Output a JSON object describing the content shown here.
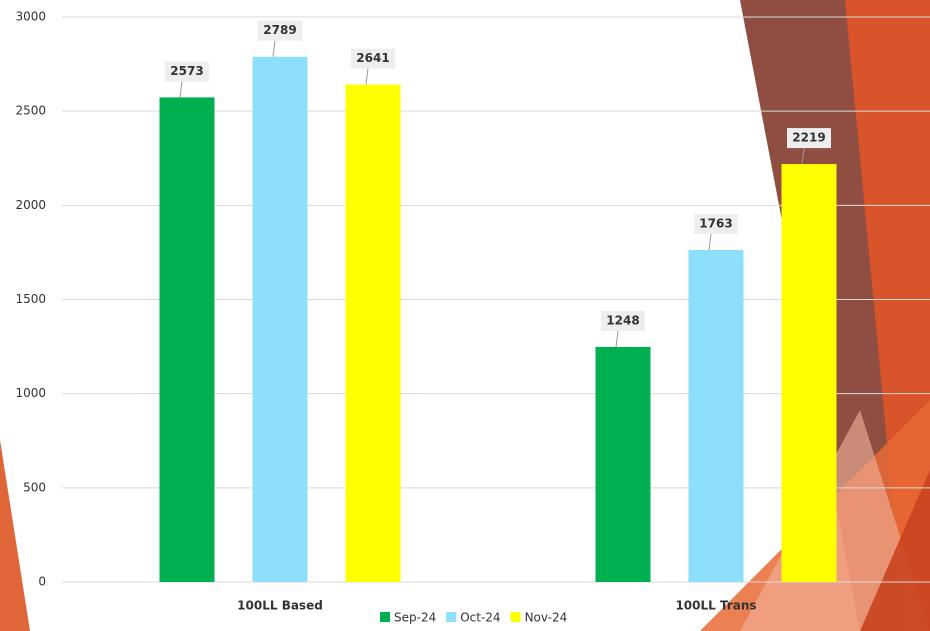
{
  "chart_data": {
    "type": "bar",
    "categories": [
      "100LL Based",
      "100LL Trans"
    ],
    "series": [
      {
        "name": "Sep-24",
        "color": "#00b050",
        "values": [
          2573,
          1248
        ]
      },
      {
        "name": "Oct-24",
        "color": "#8ddffc",
        "values": [
          2789,
          1763
        ]
      },
      {
        "name": "Nov-24",
        "color": "#ffff00",
        "values": [
          2641,
          2219
        ]
      }
    ],
    "ylim": [
      0,
      3000
    ],
    "yticks": [
      0,
      500,
      1000,
      1500,
      2000,
      2500,
      3000
    ],
    "grid": true,
    "legend": "bottom"
  }
}
